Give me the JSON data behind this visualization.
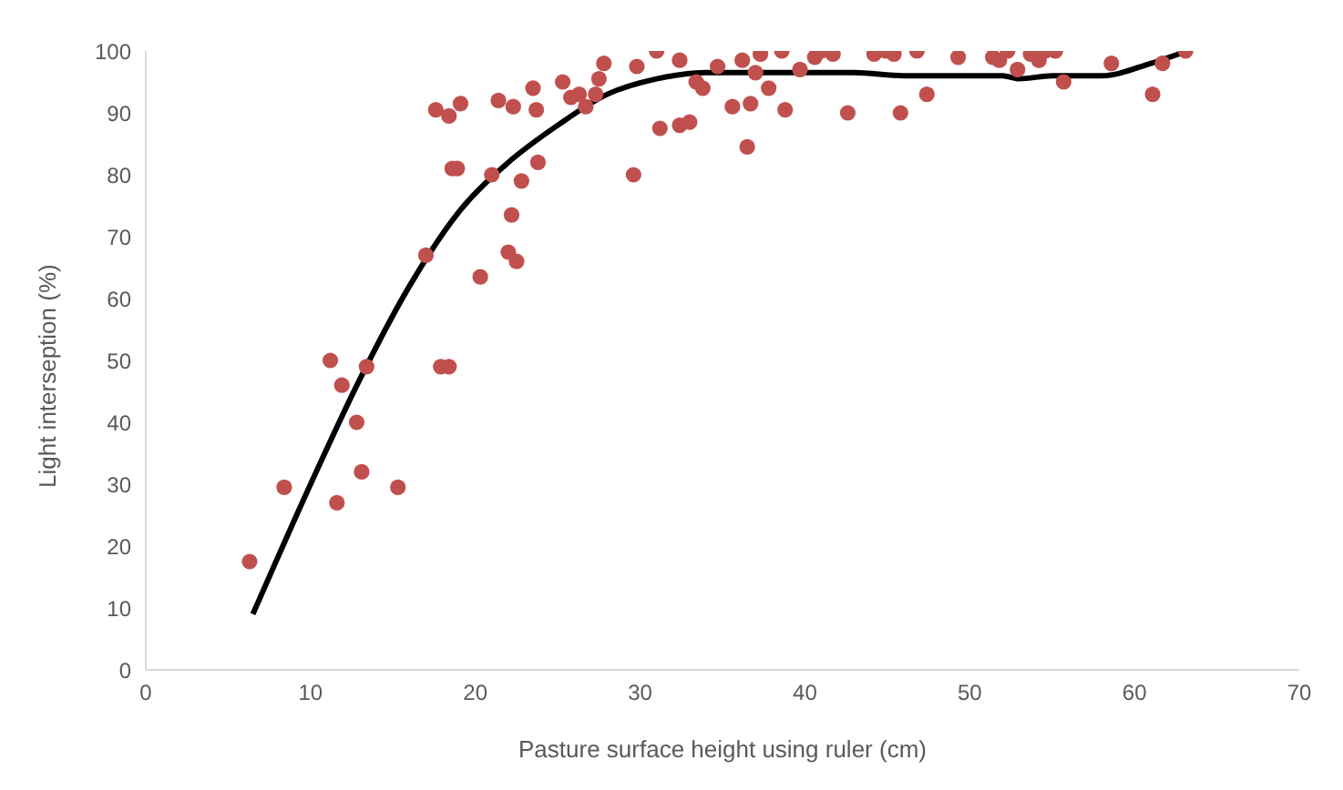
{
  "chart_data": {
    "type": "scatter",
    "xlabel": "Pasture surface height using ruler (cm)",
    "ylabel": "Light interseption (%)",
    "xlim": [
      0,
      70
    ],
    "xticks": [
      0,
      10,
      20,
      30,
      40,
      50,
      60,
      70
    ],
    "ylim": [
      0,
      100
    ],
    "yticks": [
      0,
      10,
      20,
      30,
      40,
      50,
      60,
      70,
      80,
      90,
      100
    ],
    "grid": false,
    "legend": false,
    "marker": "circle",
    "series": [
      {
        "color": "#c0504d",
        "x": [
          6.3,
          8.4,
          11.2,
          11.6,
          11.9,
          12.8,
          13.1,
          13.4,
          15.3,
          17,
          17.6,
          17.9,
          18.4,
          18.4,
          18.6,
          18.9,
          19.1,
          20.3,
          21,
          21.4,
          22,
          22.2,
          22.5,
          22.3,
          22.8,
          23.5,
          23.7,
          23.8,
          25.3,
          25.8,
          26.3,
          26.7,
          27.3,
          27.5,
          27.8,
          29.6,
          29.8,
          31,
          31.2,
          32.4,
          32.4,
          33,
          33.4,
          33.8,
          34.7,
          35.6,
          36.2,
          36.5,
          36.7,
          37,
          37.3,
          37.8,
          38.6,
          38.8,
          39.7,
          40.6,
          41,
          41.7,
          42.6,
          44.2,
          44.9,
          45.4,
          45.8,
          46.8,
          47.4,
          49.3,
          51.4,
          51.8,
          52.3,
          52.9,
          53.7,
          54.2,
          54.6,
          55.2,
          55.7,
          58.6,
          61.1,
          61.7,
          63.1
        ],
        "values": [
          17.5,
          29.5,
          50,
          27,
          46,
          40,
          32,
          49,
          29.5,
          67,
          90.5,
          49,
          49,
          89.5,
          81,
          81,
          91.5,
          63.5,
          80,
          92,
          67.5,
          73.5,
          66,
          91,
          79,
          94,
          90.5,
          82,
          95,
          92.5,
          93,
          91,
          93,
          95.5,
          98,
          80,
          97.5,
          100,
          87.5,
          98.5,
          88,
          88.5,
          95,
          94,
          97.5,
          91,
          98.5,
          84.5,
          91.5,
          96.5,
          99.5,
          94,
          100,
          90.5,
          97,
          99,
          100,
          99.5,
          90,
          99.5,
          100,
          99.5,
          90,
          100,
          93,
          99,
          99,
          98.5,
          100,
          97,
          99.5,
          98.5,
          100,
          100,
          95,
          98,
          93,
          98,
          100
        ]
      },
      {
        "type": "line",
        "color": "#000000",
        "marker": "none",
        "line_style": "solid",
        "x": [
          6.5,
          10,
          13,
          16,
          19,
          22,
          25,
          28,
          31,
          34,
          37,
          40,
          43,
          46,
          49,
          52,
          53,
          55,
          58,
          61,
          63.2
        ],
        "values": [
          9,
          30,
          47,
          62,
          74,
          82,
          88,
          93,
          95.5,
          96.5,
          96.5,
          96.5,
          96.5,
          96,
          96,
          96,
          95.5,
          96,
          96,
          98,
          100
        ]
      }
    ]
  }
}
